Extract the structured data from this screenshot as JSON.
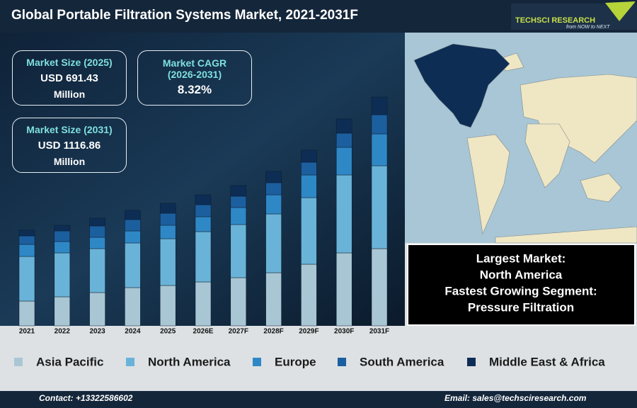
{
  "header": {
    "title": "Global Portable Filtration Systems Market, 2021-2031F",
    "logo": "TECHSCI RESEARCH",
    "tagline": "from NOW to NEXT"
  },
  "stats": [
    {
      "label": "Market Size (2025)",
      "value": "USD 691.43",
      "unit": "Million"
    },
    {
      "label": "Market CAGR (2026-2031)",
      "value": "8.32%"
    },
    {
      "label": "Market Size (2031)",
      "value": "USD 1116.86",
      "unit": "Million"
    }
  ],
  "chart_data": {
    "type": "stacked_bar",
    "categories": [
      "2021",
      "2022",
      "2023",
      "2024",
      "2025",
      "2026E",
      "2027F",
      "2028F",
      "2029F",
      "2030F",
      "2031F"
    ],
    "series": [
      {
        "name": "Asia Pacific",
        "color": "#a9c6d4",
        "values": [
          35,
          41,
          47,
          54,
          57,
          62,
          68,
          75,
          87,
          103,
          109
        ]
      },
      {
        "name": "North America",
        "color": "#6ab3d8",
        "values": [
          63,
          62,
          62,
          63,
          66,
          71,
          75,
          83,
          94,
          110,
          117
        ]
      },
      {
        "name": "Europe",
        "color": "#2f88c6",
        "values": [
          17,
          16,
          16,
          17,
          19,
          21,
          24,
          27,
          32,
          39,
          45
        ]
      },
      {
        "name": "South America",
        "color": "#1c5f9f",
        "values": [
          12,
          15,
          16,
          16,
          17,
          17,
          16,
          17,
          18,
          20,
          27
        ]
      },
      {
        "name": "Middle East & Africa",
        "color": "#0d2d55",
        "values": [
          8,
          8,
          11,
          13,
          14,
          14,
          15,
          16,
          17,
          20,
          25
        ]
      }
    ]
  },
  "highlights": [
    "Largest Market:",
    "North America",
    "Fastest Growing Segment:",
    "Pressure Filtration"
  ],
  "footer": {
    "contact": "Contact: +13322586602",
    "email": "Email: sales@techsciresearch.com"
  }
}
